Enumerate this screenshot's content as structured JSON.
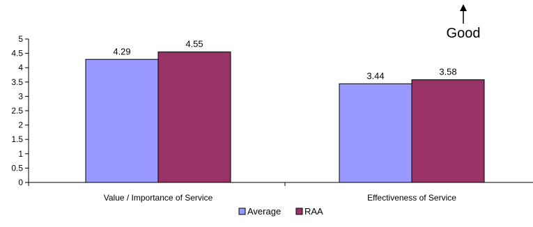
{
  "chart_data": {
    "type": "bar",
    "categories": [
      "Value / Importance of Service",
      "Effectiveness of Service"
    ],
    "series": [
      {
        "name": "Average",
        "values": [
          4.29,
          3.44
        ],
        "color": "#9999FF"
      },
      {
        "name": "RAA",
        "values": [
          4.55,
          3.58
        ],
        "color": "#993366"
      }
    ],
    "data_labels": [
      [
        "4.29",
        "3.44"
      ],
      [
        "4.55",
        "3.58"
      ]
    ],
    "ylim": [
      0,
      5
    ],
    "yticks": [
      0,
      0.5,
      1,
      1.5,
      2,
      2.5,
      3,
      3.5,
      4,
      4.5,
      5
    ],
    "ytick_labels": [
      "0",
      "0.5",
      "1",
      "1.5",
      "2",
      "2.5",
      "3",
      "3.5",
      "4",
      "4.5",
      "5"
    ],
    "legend_position": "bottom",
    "grid": false,
    "annotation": {
      "text": "Good",
      "icon": "arrow-up-icon"
    }
  }
}
